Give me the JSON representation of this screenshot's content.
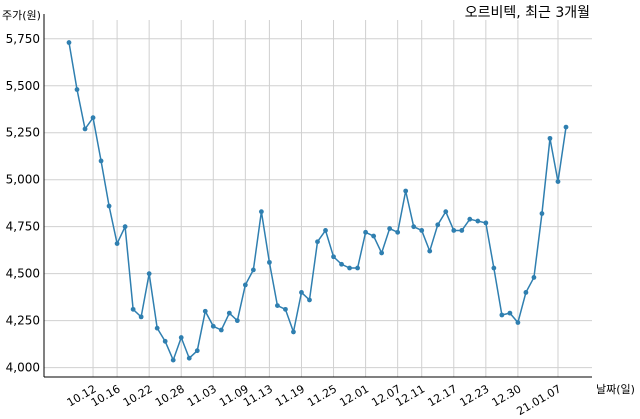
{
  "chart_data": {
    "type": "line",
    "title": "오르비텍, 최근 3개월",
    "xlabel": "날짜(일)",
    "ylabel": "주가(원)",
    "ylim": [
      3950,
      5850
    ],
    "y_ticks": [
      "4,000",
      "4,250",
      "4,500",
      "4,750",
      "5,000",
      "5,250",
      "5,500",
      "5,750"
    ],
    "y_tick_values": [
      4000,
      4250,
      4500,
      4750,
      5000,
      5250,
      5500,
      5750
    ],
    "x_ticks": [
      "10.12",
      "10.16",
      "10.22",
      "10.28",
      "11.03",
      "11.09",
      "11.13",
      "11.19",
      "11.25",
      "12.01",
      "12.07",
      "12.11",
      "12.17",
      "12.23",
      "12.30",
      "21.01.07"
    ],
    "x_tick_index": [
      3,
      6,
      10,
      14,
      18,
      22,
      25,
      29,
      33,
      37,
      41,
      44,
      48,
      52,
      56,
      61
    ],
    "grid": true,
    "color": "#2f7fb0",
    "series": [
      {
        "values": [
          5730,
          5480,
          5270,
          5330,
          5100,
          4860,
          4660,
          4750,
          4310,
          4270,
          4500,
          4210,
          4140,
          4040,
          4160,
          4050,
          4090,
          4300,
          4220,
          4200,
          4290,
          4250,
          4440,
          4520,
          4830,
          4560,
          4330,
          4310,
          4190,
          4400,
          4360,
          4670,
          4730,
          4590,
          4550,
          4530,
          4530,
          4720,
          4700,
          4610,
          4740,
          4720,
          4940,
          4750,
          4730,
          4620,
          4760,
          4830,
          4730,
          4730,
          4790,
          4780,
          4770,
          4530,
          4280,
          4290,
          4240,
          4400,
          4480,
          4820,
          5220,
          4990,
          5280
        ]
      }
    ]
  }
}
